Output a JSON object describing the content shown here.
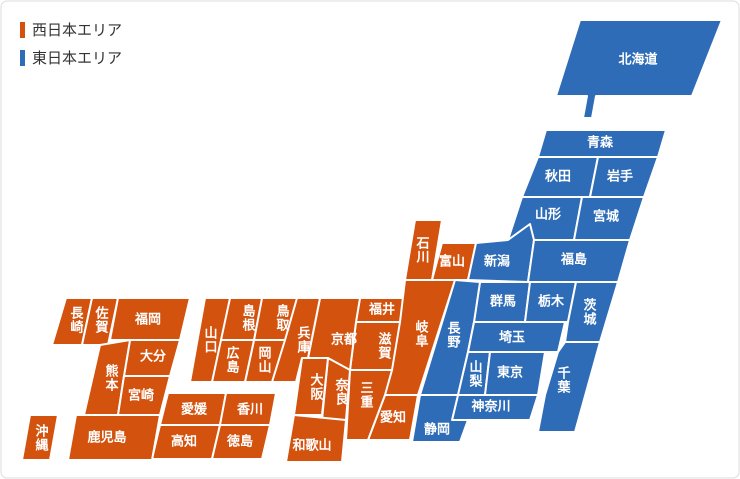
{
  "regions": [
    {
      "name": "西日本エリア",
      "color": "#d3520e",
      "prefectures": [
        "石川",
        "富山",
        "福井",
        "岐阜",
        "滋賀",
        "京都",
        "愛知",
        "三重",
        "奈良",
        "大阪",
        "和歌山",
        "兵庫",
        "鳥取",
        "島根",
        "岡山",
        "広島",
        "山口",
        "愛媛",
        "香川",
        "高知",
        "徳島",
        "長崎",
        "佐賀",
        "福岡",
        "大分",
        "熊本",
        "宮崎",
        "鹿児島",
        "沖縄"
      ]
    },
    {
      "name": "東日本エリア",
      "color": "#2e6cb7",
      "prefectures": [
        "北海道",
        "青森",
        "秋田",
        "岩手",
        "山形",
        "宮城",
        "新潟",
        "福島",
        "群馬",
        "栃木",
        "茨城",
        "長野",
        "埼玉",
        "山梨",
        "東京",
        "千葉",
        "神奈川",
        "静岡"
      ]
    }
  ]
}
